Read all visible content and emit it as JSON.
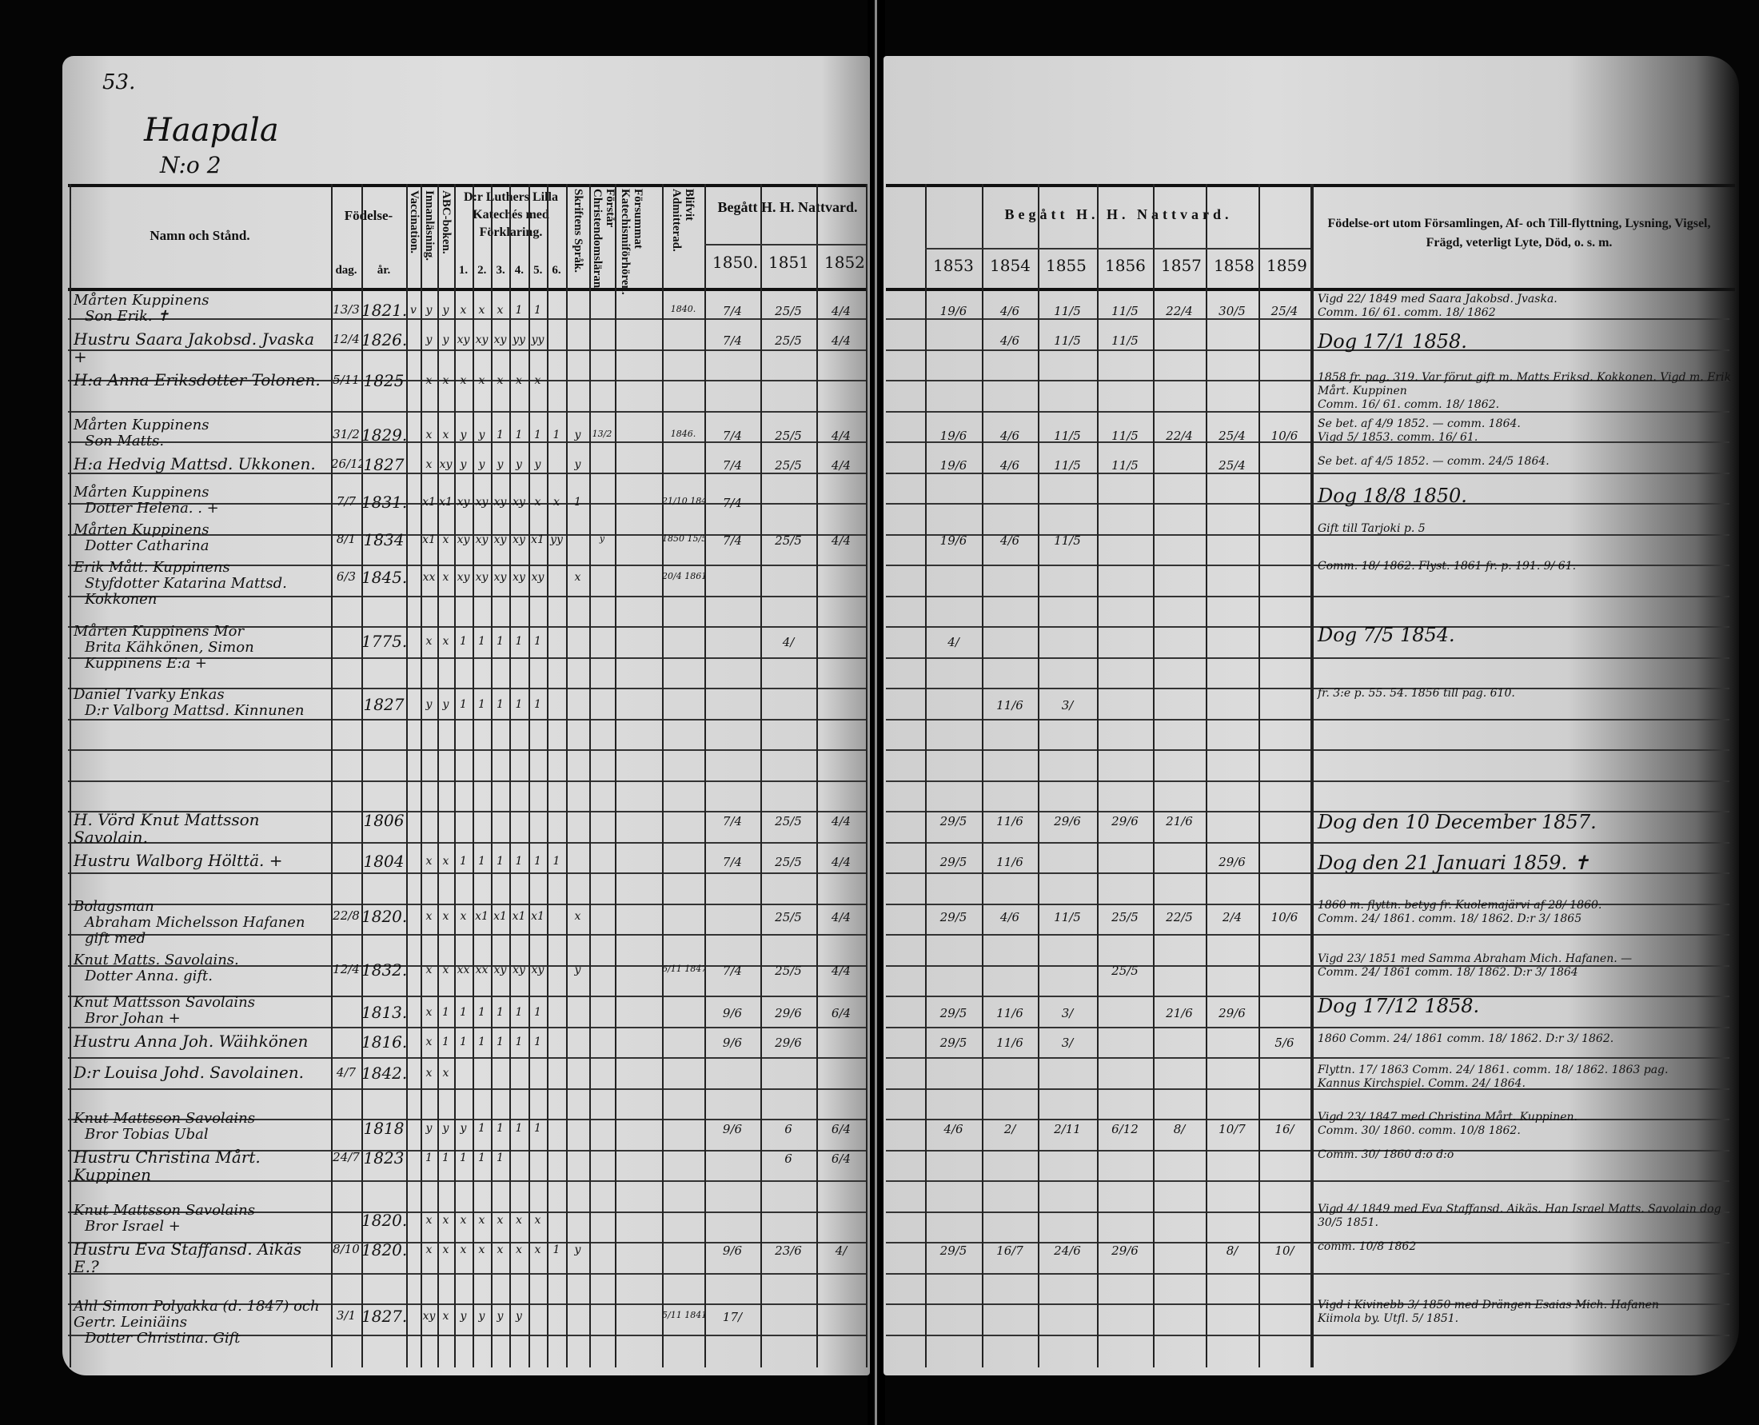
{
  "page": {
    "page_number": "53.",
    "village": "Haapala",
    "house_number": "N:o 2"
  },
  "headers": {
    "name": "Namn och Stånd.",
    "birth": "Födelse-",
    "birth_day": "dag.",
    "birth_year": "år.",
    "vaccination": "Vaccination.",
    "reading": "Innanläsning.",
    "abc": "ABC-boken.",
    "luther": "D:r Luthers Lilla Katechés med Förklaring.",
    "luther_parts": [
      "1.",
      "2.",
      "3.",
      "4.",
      "5.",
      "6."
    ],
    "scripture": "Skriftens Språk.",
    "understands": "Förstår Christendomsläran.",
    "missed": "Försummat Katechismiförhören.",
    "admitted": "Blifvit Admitterad.",
    "communion_left": "Begått H. H. Nattvard.",
    "communion_right": "Begått H. H. Nattvard.",
    "years_left": [
      "1850.",
      "1851",
      "1852"
    ],
    "years_right": [
      "1853",
      "1854",
      "1855",
      "1856",
      "1857",
      "1858",
      "1859"
    ],
    "remarks": "Födelse-ort utom Församlingen, Af- och Till-flyttning, Lysning, Vigsel, Frägd, veterligt Lyte, Död, o. s. m."
  },
  "rows": [
    {
      "name": [
        "Mårten Kuppinens",
        "Son Erik. ✝"
      ],
      "dag": "13/3",
      "ar": "1821.",
      "marks": [
        "v",
        "y",
        "y",
        "x",
        "x",
        "x",
        "1",
        "1",
        "",
        "",
        "",
        "1840."
      ],
      "comm": [
        "7/4",
        "25/5",
        "4/4",
        "19/6",
        "4/6",
        "11/5",
        "11/5",
        "22/4",
        "30/5",
        "25/4"
      ],
      "remark": [
        "Vigd 22/ 1849 med Saara Jakobsd. Jvaska.",
        "Comm. 16/ 61. comm. 18/ 1862"
      ]
    },
    {
      "name": [
        "Hustru Saara Jakobsd. Jvaska +"
      ],
      "dag": "12/4",
      "ar": "1826.",
      "marks": [
        "",
        "y",
        "y",
        "xy",
        "xy",
        "xy",
        "yy",
        "yy",
        "",
        "",
        "",
        ""
      ],
      "comm": [
        "7/4",
        "25/5",
        "4/4",
        "",
        "4/6",
        "11/5",
        "11/5",
        "",
        "",
        ""
      ],
      "remark": [
        "Dog 17/1 1858."
      ]
    },
    {
      "name": [
        "H:a Anna Eriksdotter Tolonen."
      ],
      "dag": "5/11",
      "ar": "1825",
      "marks": [
        "",
        "x",
        "x",
        "x",
        "x",
        "x",
        "x",
        "x",
        "",
        "",
        "",
        ""
      ],
      "comm": [
        "",
        "",
        "",
        "",
        "",
        "",
        "",
        "",
        "",
        ""
      ],
      "remark": [
        "1858 fr. pag. 319. Var förut gift m. Matts Eriksd. Kokkonen. Vigd m. Erik Mårt. Kuppinen",
        "Comm. 16/ 61. comm. 18/ 1862."
      ]
    },
    {
      "name": [
        "Mårten Kuppinens",
        "Son Matts."
      ],
      "dag": "31/2",
      "ar": "1829.",
      "marks": [
        "",
        "x",
        "x",
        "y",
        "y",
        "1",
        "1",
        "1",
        "1",
        "y",
        "13/2",
        "1846."
      ],
      "comm": [
        "7/4",
        "25/5",
        "4/4",
        "19/6",
        "4/6",
        "11/5",
        "11/5",
        "22/4",
        "25/4",
        "10/6"
      ],
      "remark": [
        "Se bet. af 4/9 1852. —   comm. 1864.",
        "Vigd 5/ 1853. comm. 16/ 61."
      ]
    },
    {
      "name": [
        "H:a Hedvig Mattsd. Ukkonen."
      ],
      "dag": "26/12",
      "ar": "1827",
      "marks": [
        "",
        "x",
        "xy",
        "y",
        "y",
        "y",
        "y",
        "y",
        "",
        "y",
        "",
        ""
      ],
      "comm": [
        "7/4",
        "25/5",
        "4/4",
        "19/6",
        "4/6",
        "11/5",
        "11/5",
        "",
        "25/4",
        ""
      ],
      "remark": [
        "Se bet. af 4/5 1852. —   comm. 24/5 1864."
      ]
    },
    {
      "name": [
        "Mårten Kuppinens",
        "Dotter Helena. . +"
      ],
      "dag": "7/7",
      "ar": "1831.",
      "marks": [
        "",
        "x1",
        "x1",
        "xy",
        "xy",
        "xy",
        "xy",
        "x",
        "x",
        "1",
        "",
        "21/10 1848"
      ],
      "comm": [
        "7/4",
        "",
        "",
        "",
        "",
        "",
        "",
        "",
        "",
        ""
      ],
      "remark": [
        "Dog 18/8 1850."
      ]
    },
    {
      "name": [
        "Mårten Kuppinens",
        "Dotter Catharina"
      ],
      "dag": "8/1",
      "ar": "1834",
      "marks": [
        "",
        "x1",
        "x",
        "xy",
        "xy",
        "xy",
        "xy",
        "x1",
        "yy",
        "",
        "y",
        "1850 15/5"
      ],
      "comm": [
        "7/4",
        "25/5",
        "4/4",
        "19/6",
        "4/6",
        "11/5",
        "",
        "",
        "",
        ""
      ],
      "remark": [
        "Gift till Tarjoki p. 5"
      ]
    },
    {
      "name": [
        "Erik Mått. Kuppinens",
        "Styfdotter Katarina Mattsd. Kokkonen"
      ],
      "dag": "6/3",
      "ar": "1845.",
      "marks": [
        "",
        "xx",
        "x",
        "xy",
        "xy",
        "xy",
        "xy",
        "xy",
        "",
        "x",
        "",
        "20/4 1861"
      ],
      "comm": [
        "",
        "",
        "",
        "",
        "",
        "",
        "",
        "",
        "",
        ""
      ],
      "remark": [
        "Comm. 18/ 1862. Flyst. 1861 fr. p. 191. 9/ 61."
      ]
    },
    {
      "name": [
        "Mårten Kuppinens Mor",
        "Brita Kähkönen, Simon Kuppinens E:a +"
      ],
      "dag": "",
      "ar": "1775.",
      "marks": [
        "",
        "x",
        "x",
        "1",
        "1",
        "1",
        "1",
        "1",
        "",
        "",
        "",
        ""
      ],
      "comm": [
        "",
        "4/",
        "",
        "4/",
        "",
        "",
        "",
        "",
        "",
        ""
      ],
      "remark": [
        "Dog 7/5 1854."
      ]
    },
    {
      "name": [
        "Daniel Tvarky Enkas",
        "D:r Valborg Mattsd. Kinnunen"
      ],
      "dag": "",
      "ar": "1827",
      "marks": [
        "",
        "y",
        "y",
        "1",
        "1",
        "1",
        "1",
        "1",
        "",
        "",
        "",
        ""
      ],
      "comm": [
        "",
        "",
        "",
        "",
        "11/6",
        "3/",
        "",
        "",
        "",
        ""
      ],
      "remark": [
        "fr. 3:e p. 55. 54. 1856 till pag. 610."
      ]
    },
    {
      "name": [
        "H. Vörd Knut Mattsson Savolain."
      ],
      "dag": "",
      "ar": "1806",
      "marks": [
        "",
        "",
        "",
        "",
        "",
        "",
        "",
        "",
        "",
        "",
        "",
        ""
      ],
      "comm": [
        "7/4",
        "25/5",
        "4/4",
        "29/5",
        "11/6",
        "29/6",
        "29/6",
        "21/6",
        "",
        ""
      ],
      "remark": [
        "Dog den 10 December 1857."
      ]
    },
    {
      "name": [
        "Hustru Walborg Hölttä. +"
      ],
      "dag": "",
      "ar": "1804",
      "marks": [
        "",
        "x",
        "x",
        "1",
        "1",
        "1",
        "1",
        "1",
        "1",
        "",
        "",
        ""
      ],
      "comm": [
        "7/4",
        "25/5",
        "4/4",
        "29/5",
        "11/6",
        "",
        "",
        "",
        "29/6",
        ""
      ],
      "remark": [
        "Dog den 21 Januari 1859.   ✝"
      ]
    },
    {
      "name": [
        "Bolagsman",
        "Abraham Michelsson Hafanen gift med"
      ],
      "dag": "22/8",
      "ar": "1820.",
      "marks": [
        "",
        "x",
        "x",
        "x",
        "x1",
        "x1",
        "x1",
        "x1",
        "",
        "x",
        "",
        ""
      ],
      "comm": [
        "",
        "25/5",
        "4/4",
        "29/5",
        "4/6",
        "11/5",
        "25/5",
        "22/5",
        "2/4",
        "10/6"
      ],
      "remark": [
        "1860 m. flyttn. betyg fr. Kuolemajärvi af 28/ 1860.",
        "Comm. 24/ 1861. comm. 18/ 1862. D:r 3/ 1865"
      ]
    },
    {
      "name": [
        "Knut Matts. Savolains.",
        "Dotter Anna. gift."
      ],
      "dag": "12/4",
      "ar": "1832.",
      "marks": [
        "",
        "x",
        "x",
        "xx",
        "xx",
        "xy",
        "xy",
        "xy",
        "",
        "y",
        "",
        "6/11 1847"
      ],
      "comm": [
        "7/4",
        "25/5",
        "4/4",
        "",
        "",
        "",
        "25/5",
        "",
        "",
        ""
      ],
      "remark": [
        "Vigd 23/ 1851 med Samma Abraham Mich. Hafanen. —",
        "Comm. 24/ 1861 comm. 18/ 1862. D:r 3/ 1864"
      ]
    },
    {
      "name": [
        "Knut Mattsson Savolains",
        "Bror Johan +"
      ],
      "dag": "",
      "ar": "1813.",
      "marks": [
        "",
        "x",
        "1",
        "1",
        "1",
        "1",
        "1",
        "1",
        "",
        "",
        "",
        ""
      ],
      "comm": [
        "9/6",
        "29/6",
        "6/4",
        "29/5",
        "11/6",
        "3/",
        "",
        "21/6",
        "29/6",
        ""
      ],
      "remark": [
        "Dog 17/12 1858."
      ]
    },
    {
      "name": [
        "Hustru Anna Joh. Wäihkönen"
      ],
      "dag": "",
      "ar": "1816.",
      "marks": [
        "",
        "x",
        "1",
        "1",
        "1",
        "1",
        "1",
        "1",
        "",
        "",
        "",
        ""
      ],
      "comm": [
        "9/6",
        "29/6",
        "",
        "29/5",
        "11/6",
        "3/",
        "",
        "",
        "",
        "5/6"
      ],
      "remark": [
        "1860 Comm. 24/ 1861 comm. 18/ 1862. D:r 3/ 1862."
      ]
    },
    {
      "name": [
        "D:r Louisa Johd. Savolainen."
      ],
      "dag": "4/7",
      "ar": "1842.",
      "marks": [
        "",
        "x",
        "x",
        "",
        "",
        "",
        "",
        "",
        "",
        "",
        "",
        ""
      ],
      "comm": [
        "",
        "",
        "",
        "",
        "",
        "",
        "",
        "",
        "",
        ""
      ],
      "remark": [
        "Flyttn. 17/ 1863 Comm. 24/ 1861. comm. 18/ 1862. 1863 pag.",
        "Kannus Kirchspiel. Comm. 24/ 1864."
      ]
    },
    {
      "name": [
        "Knut Mattsson Savolains",
        "Bror Tobias Ubal"
      ],
      "dag": "",
      "ar": "1818",
      "marks": [
        "",
        "y",
        "y",
        "y",
        "1",
        "1",
        "1",
        "1",
        "",
        "",
        "",
        ""
      ],
      "comm": [
        "9/6",
        "6",
        "6/4",
        "4/6",
        "2/",
        "2/11",
        "6/12",
        "8/",
        "10/7",
        "16/"
      ],
      "remark": [
        "Vigd 23/ 1847 med Christina Mårt. Kuppinen.",
        "Comm. 30/ 1860. comm. 10/8 1862."
      ]
    },
    {
      "name": [
        "Hustru Christina Mårt. Kuppinen"
      ],
      "dag": "24/7",
      "ar": "1823",
      "marks": [
        "",
        "1",
        "1",
        "1",
        "1",
        "1",
        "",
        "",
        "",
        "",
        "",
        ""
      ],
      "comm": [
        "",
        "6",
        "6/4",
        "",
        "",
        "",
        "",
        "",
        "",
        ""
      ],
      "remark": [
        "Comm. 30/ 1860  d:o  d:o"
      ]
    },
    {
      "name": [
        "Knut Mattsson Savolains",
        "Bror Israel +"
      ],
      "dag": "",
      "ar": "1820.",
      "marks": [
        "",
        "x",
        "x",
        "x",
        "x",
        "x",
        "x",
        "x",
        "",
        "",
        "",
        ""
      ],
      "comm": [
        "",
        "",
        "",
        "",
        "",
        "",
        "",
        "",
        "",
        ""
      ],
      "remark": [
        "Vigd 4/ 1849 med Eva Staffansd. Aikäs. Han Israel Matts. Savolain dog",
        "30/5 1851."
      ]
    },
    {
      "name": [
        "Hustru Eva Staffansd. Aikäs E.?"
      ],
      "dag": "8/10",
      "ar": "1820.",
      "marks": [
        "",
        "x",
        "x",
        "x",
        "x",
        "x",
        "x",
        "x",
        "1",
        "y",
        "",
        ""
      ],
      "comm": [
        "9/6",
        "23/6",
        "4/",
        "29/5",
        "16/7",
        "24/6",
        "29/6",
        "",
        "8/",
        "10/"
      ],
      "remark": [
        "comm. 10/8 1862"
      ]
    },
    {
      "name": [
        "Ahl Simon Polyakka (d. 1847) och Gertr. Leiniäins",
        "Dotter Christina. Gift"
      ],
      "dag": "3/1",
      "ar": "1827.",
      "marks": [
        "",
        "xy",
        "x",
        "y",
        "y",
        "y",
        "y",
        "",
        "",
        "",
        "",
        "5/11 1841"
      ],
      "comm": [
        "17/",
        "",
        "",
        "",
        "",
        "",
        "",
        "",
        "",
        ""
      ],
      "remark": [
        "Vigd i Kivinebb 3/ 1850 med Drängen Esaias Mich. Hafanen",
        "Kiimola by. Utfl. 5/ 1851."
      ]
    }
  ]
}
